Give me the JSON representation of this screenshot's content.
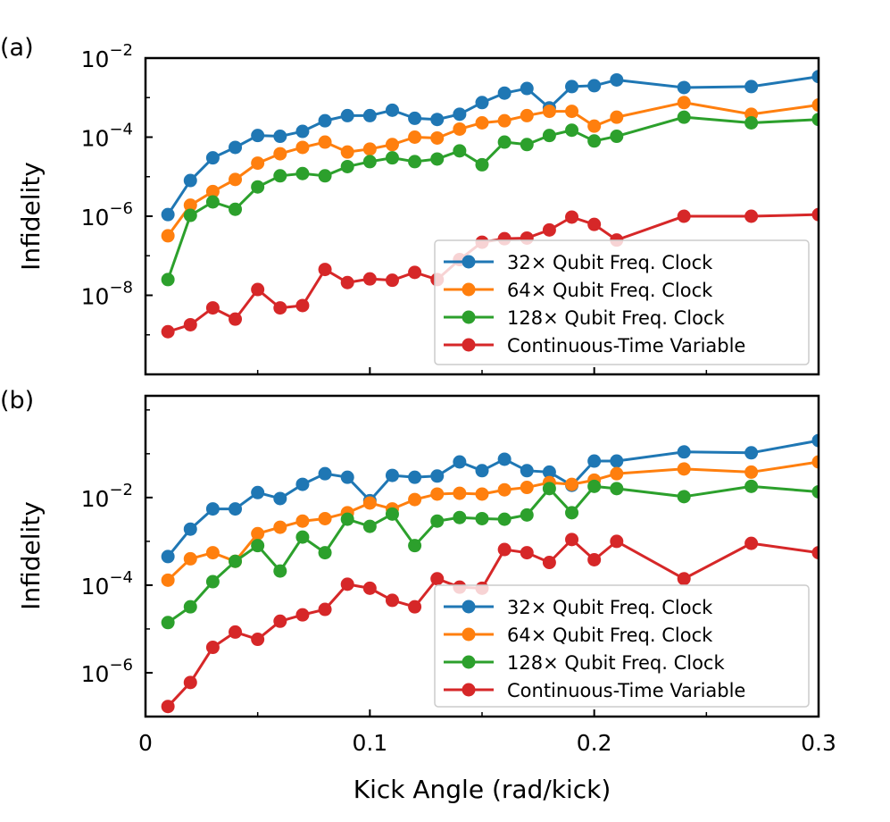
{
  "figure": {
    "xlabel": "Kick Angle (rad/kick)",
    "x_ticks": [
      "0",
      "0.1",
      "0.2",
      "0.3"
    ],
    "colors": {
      "s32": "#1f77b4",
      "s64": "#ff7f0e",
      "s128": "#2ca02c",
      "cont": "#d62728"
    }
  },
  "chart_data": [
    {
      "type": "line",
      "panel_label": "(a)",
      "ylabel": "Infidelity",
      "yscale": "log",
      "ylim": [
        1e-10,
        0.01
      ],
      "xlim": [
        0,
        0.3
      ],
      "y_tick_mantissa": [
        "10",
        "10",
        "10",
        "10"
      ],
      "y_tick_exponents": [
        "−2",
        "−4",
        "−6",
        "−8"
      ],
      "y_tick_values": [
        0.01,
        0.0001,
        1e-06,
        1e-08
      ],
      "legend": [
        "32× Qubit Freq. Clock",
        "64× Qubit Freq. Clock",
        "128× Qubit Freq. Clock",
        "Continuous-Time Variable"
      ],
      "legend_position": "lower-right",
      "series": [
        {
          "name": "32× Qubit Freq. Clock",
          "color_key": "s32",
          "x": [
            0.01,
            0.02,
            0.03,
            0.04,
            0.05,
            0.06,
            0.07,
            0.08,
            0.09,
            0.1,
            0.11,
            0.12,
            0.13,
            0.14,
            0.15,
            0.16,
            0.17,
            0.18,
            0.19,
            0.2,
            0.21,
            0.24,
            0.27,
            0.3
          ],
          "y": [
            1.1e-06,
            8e-06,
            3e-05,
            5.5e-05,
            0.00011,
            0.000105,
            0.00014,
            0.00026,
            0.00035,
            0.00035,
            0.00048,
            0.0003,
            0.00028,
            0.00038,
            0.00075,
            0.0013,
            0.0017,
            0.00055,
            0.0019,
            0.002,
            0.0028,
            0.0018,
            0.0019,
            0.0034
          ]
        },
        {
          "name": "64× Qubit Freq. Clock",
          "color_key": "s64",
          "x": [
            0.01,
            0.02,
            0.03,
            0.04,
            0.05,
            0.06,
            0.07,
            0.08,
            0.09,
            0.1,
            0.11,
            0.12,
            0.13,
            0.14,
            0.15,
            0.16,
            0.17,
            0.18,
            0.19,
            0.2,
            0.21,
            0.24,
            0.27,
            0.3
          ],
          "y": [
            3.2e-07,
            1.9e-06,
            4.2e-06,
            8.5e-06,
            2.2e-05,
            3.8e-05,
            5.5e-05,
            7.5e-05,
            4.2e-05,
            5e-05,
            6.5e-05,
            0.0001,
            9.5e-05,
            0.00016,
            0.00023,
            0.00026,
            0.00035,
            0.00045,
            0.00045,
            0.00019,
            0.00032,
            0.00075,
            0.00038,
            0.00065
          ]
        },
        {
          "name": "128× Qubit Freq. Clock",
          "color_key": "s128",
          "x": [
            0.01,
            0.02,
            0.03,
            0.04,
            0.05,
            0.06,
            0.07,
            0.08,
            0.09,
            0.1,
            0.11,
            0.12,
            0.13,
            0.14,
            0.15,
            0.16,
            0.17,
            0.18,
            0.19,
            0.2,
            0.21,
            0.24,
            0.27,
            0.3
          ],
          "y": [
            2.5e-08,
            1.05e-06,
            2.3e-06,
            1.5e-06,
            5.5e-06,
            1.05e-05,
            1.2e-05,
            1.05e-05,
            1.8e-05,
            2.4e-05,
            3e-05,
            2.4e-05,
            2.8e-05,
            4.5e-05,
            2e-05,
            7.5e-05,
            6.5e-05,
            0.00011,
            0.00015,
            8e-05,
            0.000105,
            0.00032,
            0.00023,
            0.00028
          ]
        },
        {
          "name": "Continuous-Time Variable",
          "color_key": "cont",
          "x": [
            0.01,
            0.02,
            0.03,
            0.04,
            0.05,
            0.06,
            0.07,
            0.08,
            0.09,
            0.1,
            0.11,
            0.12,
            0.13,
            0.14,
            0.15,
            0.16,
            0.17,
            0.18,
            0.19,
            0.2,
            0.21,
            0.24,
            0.27,
            0.3
          ],
          "y": [
            1.2e-09,
            1.8e-09,
            4.8e-09,
            2.5e-09,
            1.4e-08,
            4.8e-09,
            5.5e-09,
            4.5e-08,
            2.1e-08,
            2.6e-08,
            2.4e-08,
            3.8e-08,
            2.5e-08,
            8e-08,
            2.2e-07,
            2.7e-07,
            2.8e-07,
            4.5e-07,
            9.5e-07,
            6.2e-07,
            2.5e-07,
            1e-06,
            1e-06,
            1.1e-06
          ]
        }
      ]
    },
    {
      "type": "line",
      "panel_label": "(b)",
      "ylabel": "Infidelity",
      "yscale": "log",
      "ylim": [
        1e-07,
        2.1
      ],
      "xlim": [
        0,
        0.3
      ],
      "y_tick_mantissa": [
        "10",
        "10",
        "10"
      ],
      "y_tick_exponents": [
        "−2",
        "−4",
        "−6"
      ],
      "y_tick_values": [
        0.01,
        0.0001,
        1e-06
      ],
      "legend": [
        "32× Qubit Freq. Clock",
        "64× Qubit Freq. Clock",
        "128× Qubit Freq. Clock",
        "Continuous-Time Variable"
      ],
      "legend_position": "lower-right",
      "series": [
        {
          "name": "32× Qubit Freq. Clock",
          "color_key": "s32",
          "x": [
            0.01,
            0.02,
            0.03,
            0.04,
            0.05,
            0.06,
            0.07,
            0.08,
            0.09,
            0.1,
            0.11,
            0.12,
            0.13,
            0.14,
            0.15,
            0.16,
            0.17,
            0.18,
            0.19,
            0.2,
            0.21,
            0.24,
            0.27,
            0.3
          ],
          "y": [
            0.00045,
            0.0019,
            0.0055,
            0.0055,
            0.013,
            0.0095,
            0.02,
            0.035,
            0.029,
            0.0085,
            0.032,
            0.029,
            0.031,
            0.065,
            0.041,
            0.075,
            0.041,
            0.038,
            0.019,
            0.068,
            0.068,
            0.11,
            0.105,
            0.2
          ]
        },
        {
          "name": "64× Qubit Freq. Clock",
          "color_key": "s64",
          "x": [
            0.01,
            0.02,
            0.03,
            0.04,
            0.05,
            0.06,
            0.07,
            0.08,
            0.09,
            0.1,
            0.11,
            0.12,
            0.13,
            0.14,
            0.15,
            0.16,
            0.17,
            0.18,
            0.19,
            0.2,
            0.21,
            0.24,
            0.27,
            0.3
          ],
          "y": [
            0.00013,
            0.0004,
            0.00055,
            0.00035,
            0.0015,
            0.0021,
            0.0029,
            0.0033,
            0.0045,
            0.0075,
            0.0055,
            0.009,
            0.012,
            0.0125,
            0.012,
            0.015,
            0.017,
            0.022,
            0.02,
            0.025,
            0.035,
            0.045,
            0.038,
            0.065
          ]
        },
        {
          "name": "128× Qubit Freq. Clock",
          "color_key": "s128",
          "x": [
            0.01,
            0.02,
            0.03,
            0.04,
            0.05,
            0.06,
            0.07,
            0.08,
            0.09,
            0.1,
            0.11,
            0.12,
            0.13,
            0.14,
            0.15,
            0.16,
            0.17,
            0.18,
            0.19,
            0.2,
            0.21,
            0.24,
            0.27,
            0.3
          ],
          "y": [
            1.4e-05,
            3.2e-05,
            0.00012,
            0.00035,
            0.0008,
            0.00021,
            0.00125,
            0.00055,
            0.0032,
            0.0022,
            0.0042,
            0.0008,
            0.0029,
            0.0035,
            0.0033,
            0.0032,
            0.004,
            0.016,
            0.0045,
            0.018,
            0.016,
            0.0105,
            0.018,
            0.0135
          ]
        },
        {
          "name": "Continuous-Time Variable",
          "color_key": "cont",
          "x": [
            0.01,
            0.02,
            0.03,
            0.04,
            0.05,
            0.06,
            0.07,
            0.08,
            0.09,
            0.1,
            0.11,
            0.12,
            0.13,
            0.14,
            0.15,
            0.16,
            0.17,
            0.18,
            0.19,
            0.2,
            0.21,
            0.24,
            0.27,
            0.3
          ],
          "y": [
            1.7e-07,
            6e-07,
            3.8e-06,
            8.5e-06,
            5.8e-06,
            1.5e-05,
            2.1e-05,
            2.8e-05,
            0.000105,
            8.5e-05,
            4.5e-05,
            3.2e-05,
            0.00014,
            9e-05,
            8.5e-05,
            0.00065,
            0.00055,
            0.00033,
            0.0011,
            0.00038,
            0.001,
            0.00014,
            0.0009,
            0.00055
          ]
        }
      ]
    }
  ]
}
